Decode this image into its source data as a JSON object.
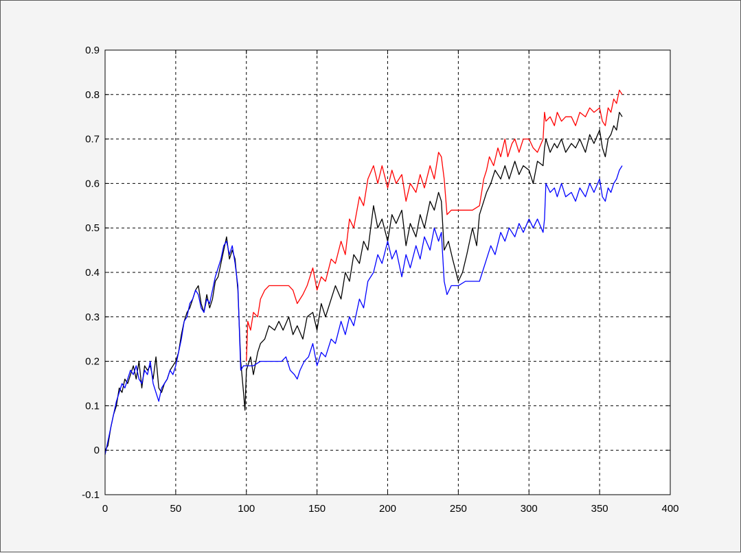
{
  "chart_data": {
    "type": "line",
    "title": "",
    "xlabel": "",
    "ylabel": "",
    "xlim": [
      0,
      400
    ],
    "ylim": [
      -0.1,
      0.9
    ],
    "grid": true,
    "grid_style": "dashed",
    "xticks": [
      0,
      50,
      100,
      150,
      200,
      250,
      300,
      350,
      400
    ],
    "yticks": [
      -0.1,
      0,
      0.1,
      0.2,
      0.3,
      0.4,
      0.5,
      0.6,
      0.7,
      0.8,
      0.9
    ],
    "xtick_labels": [
      "0",
      "50",
      "100",
      "150",
      "200",
      "250",
      "300",
      "350",
      "400"
    ],
    "ytick_labels": [
      "-0.1",
      "0",
      "0.1",
      "0.2",
      "0.3",
      "0.4",
      "0.5",
      "0.6",
      "0.7",
      "0.8",
      "0.9"
    ],
    "series": [
      {
        "color": "#ff0000",
        "x": [
          100,
          101,
          103,
          105,
          108,
          110,
          113,
          116,
          120,
          125,
          130,
          133,
          136,
          140,
          143,
          147,
          150,
          153,
          156,
          160,
          163,
          167,
          170,
          173,
          176,
          180,
          183,
          186,
          190,
          193,
          196,
          200,
          203,
          206,
          210,
          213,
          216,
          220,
          223,
          226,
          230,
          233,
          236,
          238,
          240,
          242,
          245,
          250,
          255,
          260,
          265,
          268,
          270,
          272,
          275,
          278,
          280,
          283,
          285,
          288,
          290,
          293,
          296,
          300,
          303,
          306,
          310,
          311,
          312,
          315,
          318,
          320,
          323,
          326,
          330,
          333,
          336,
          340,
          343,
          346,
          350,
          352,
          354,
          356,
          358,
          360,
          362,
          364,
          366
        ],
        "y": [
          0.2,
          0.29,
          0.27,
          0.31,
          0.3,
          0.34,
          0.36,
          0.37,
          0.37,
          0.37,
          0.37,
          0.36,
          0.33,
          0.35,
          0.37,
          0.41,
          0.36,
          0.39,
          0.38,
          0.43,
          0.42,
          0.47,
          0.44,
          0.52,
          0.5,
          0.57,
          0.55,
          0.61,
          0.64,
          0.6,
          0.64,
          0.59,
          0.63,
          0.6,
          0.62,
          0.56,
          0.6,
          0.58,
          0.62,
          0.59,
          0.64,
          0.61,
          0.67,
          0.66,
          0.61,
          0.53,
          0.54,
          0.54,
          0.54,
          0.54,
          0.55,
          0.61,
          0.63,
          0.66,
          0.64,
          0.68,
          0.66,
          0.7,
          0.66,
          0.69,
          0.7,
          0.67,
          0.7,
          0.7,
          0.68,
          0.67,
          0.7,
          0.76,
          0.74,
          0.75,
          0.73,
          0.76,
          0.74,
          0.75,
          0.75,
          0.73,
          0.76,
          0.75,
          0.77,
          0.76,
          0.77,
          0.74,
          0.73,
          0.77,
          0.76,
          0.79,
          0.78,
          0.81,
          0.8
        ]
      },
      {
        "color": "#000000",
        "x": [
          0,
          2,
          4,
          6,
          8,
          10,
          12,
          14,
          16,
          18,
          20,
          22,
          24,
          26,
          28,
          30,
          32,
          34,
          36,
          38,
          40,
          42,
          44,
          46,
          48,
          50,
          52,
          54,
          56,
          58,
          60,
          62,
          64,
          66,
          68,
          70,
          72,
          74,
          76,
          78,
          80,
          82,
          84,
          86,
          88,
          90,
          92,
          94,
          96,
          98,
          99,
          100,
          101,
          103,
          105,
          108,
          110,
          113,
          116,
          120,
          123,
          126,
          130,
          133,
          136,
          140,
          143,
          147,
          150,
          153,
          156,
          160,
          163,
          167,
          170,
          173,
          176,
          180,
          183,
          186,
          190,
          193,
          196,
          200,
          203,
          206,
          210,
          213,
          216,
          220,
          223,
          226,
          230,
          233,
          236,
          238,
          240,
          243,
          246,
          250,
          253,
          256,
          260,
          263,
          265,
          268,
          270,
          273,
          276,
          280,
          283,
          286,
          290,
          293,
          296,
          300,
          303,
          306,
          310,
          311,
          312,
          315,
          318,
          320,
          323,
          326,
          330,
          333,
          336,
          340,
          343,
          346,
          350,
          352,
          354,
          356,
          358,
          360,
          362,
          364,
          366
        ],
        "y": [
          0.0,
          0.01,
          0.05,
          0.08,
          0.1,
          0.14,
          0.13,
          0.16,
          0.15,
          0.17,
          0.19,
          0.16,
          0.2,
          0.14,
          0.19,
          0.18,
          0.19,
          0.16,
          0.21,
          0.14,
          0.13,
          0.15,
          0.16,
          0.18,
          0.19,
          0.2,
          0.22,
          0.26,
          0.29,
          0.31,
          0.32,
          0.34,
          0.36,
          0.37,
          0.33,
          0.31,
          0.35,
          0.32,
          0.34,
          0.38,
          0.39,
          0.42,
          0.45,
          0.48,
          0.43,
          0.45,
          0.43,
          0.36,
          0.2,
          0.13,
          0.09,
          0.18,
          0.19,
          0.21,
          0.17,
          0.22,
          0.24,
          0.25,
          0.28,
          0.27,
          0.29,
          0.27,
          0.3,
          0.26,
          0.28,
          0.25,
          0.3,
          0.31,
          0.27,
          0.33,
          0.3,
          0.34,
          0.37,
          0.34,
          0.4,
          0.38,
          0.44,
          0.42,
          0.47,
          0.45,
          0.55,
          0.5,
          0.52,
          0.47,
          0.53,
          0.51,
          0.54,
          0.46,
          0.51,
          0.48,
          0.53,
          0.5,
          0.56,
          0.54,
          0.58,
          0.56,
          0.45,
          0.47,
          0.43,
          0.38,
          0.4,
          0.44,
          0.5,
          0.46,
          0.53,
          0.56,
          0.58,
          0.6,
          0.63,
          0.61,
          0.64,
          0.61,
          0.65,
          0.62,
          0.64,
          0.63,
          0.6,
          0.65,
          0.64,
          0.68,
          0.7,
          0.67,
          0.69,
          0.68,
          0.7,
          0.67,
          0.69,
          0.68,
          0.7,
          0.67,
          0.71,
          0.69,
          0.72,
          0.68,
          0.66,
          0.7,
          0.71,
          0.73,
          0.72,
          0.76,
          0.75
        ]
      },
      {
        "color": "#0000ff",
        "x": [
          0,
          2,
          4,
          6,
          8,
          10,
          12,
          14,
          16,
          18,
          20,
          22,
          24,
          26,
          28,
          30,
          32,
          34,
          36,
          38,
          40,
          42,
          44,
          46,
          48,
          50,
          52,
          54,
          56,
          58,
          60,
          62,
          64,
          66,
          68,
          70,
          72,
          74,
          76,
          78,
          80,
          82,
          84,
          86,
          88,
          90,
          92,
          94,
          96,
          98,
          100,
          105,
          110,
          115,
          120,
          125,
          128,
          131,
          134,
          136,
          138,
          141,
          144,
          147,
          150,
          153,
          156,
          160,
          163,
          167,
          170,
          173,
          176,
          180,
          183,
          186,
          190,
          193,
          196,
          200,
          203,
          206,
          210,
          213,
          216,
          220,
          223,
          226,
          230,
          233,
          236,
          238,
          240,
          242,
          245,
          250,
          255,
          260,
          265,
          268,
          270,
          273,
          276,
          280,
          283,
          286,
          290,
          293,
          296,
          300,
          303,
          306,
          310,
          311,
          312,
          315,
          318,
          320,
          323,
          326,
          330,
          333,
          336,
          340,
          343,
          346,
          350,
          352,
          354,
          356,
          358,
          360,
          362,
          364,
          366
        ],
        "y": [
          -0.01,
          0.02,
          0.05,
          0.08,
          0.11,
          0.13,
          0.15,
          0.14,
          0.16,
          0.18,
          0.17,
          0.19,
          0.16,
          0.15,
          0.18,
          0.17,
          0.2,
          0.15,
          0.13,
          0.11,
          0.14,
          0.15,
          0.16,
          0.18,
          0.17,
          0.19,
          0.22,
          0.25,
          0.29,
          0.3,
          0.33,
          0.34,
          0.36,
          0.35,
          0.32,
          0.31,
          0.34,
          0.33,
          0.36,
          0.39,
          0.41,
          0.43,
          0.46,
          0.47,
          0.44,
          0.46,
          0.42,
          0.37,
          0.18,
          0.19,
          0.19,
          0.19,
          0.2,
          0.2,
          0.2,
          0.2,
          0.21,
          0.18,
          0.17,
          0.16,
          0.18,
          0.2,
          0.21,
          0.24,
          0.19,
          0.22,
          0.21,
          0.25,
          0.24,
          0.29,
          0.26,
          0.3,
          0.28,
          0.34,
          0.32,
          0.38,
          0.4,
          0.44,
          0.42,
          0.47,
          0.43,
          0.45,
          0.39,
          0.44,
          0.41,
          0.46,
          0.43,
          0.48,
          0.45,
          0.5,
          0.47,
          0.49,
          0.38,
          0.35,
          0.37,
          0.37,
          0.38,
          0.38,
          0.38,
          0.41,
          0.43,
          0.46,
          0.44,
          0.49,
          0.47,
          0.5,
          0.48,
          0.51,
          0.49,
          0.52,
          0.5,
          0.52,
          0.49,
          0.52,
          0.6,
          0.58,
          0.59,
          0.57,
          0.6,
          0.57,
          0.58,
          0.56,
          0.59,
          0.57,
          0.6,
          0.58,
          0.61,
          0.57,
          0.56,
          0.59,
          0.58,
          0.6,
          0.61,
          0.63,
          0.64
        ]
      }
    ]
  }
}
